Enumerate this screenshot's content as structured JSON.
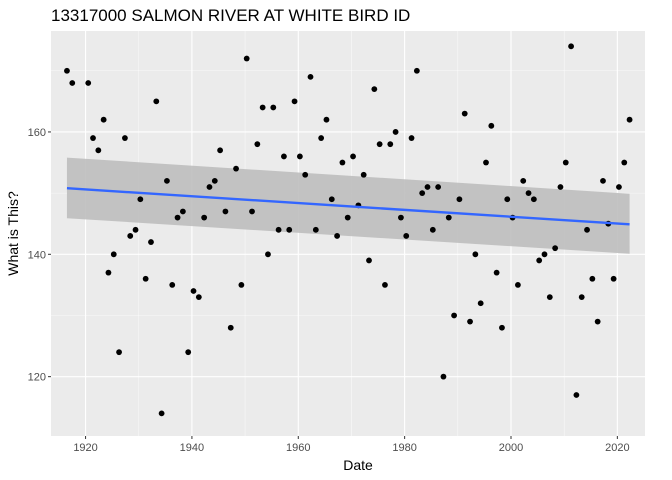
{
  "chart_data": {
    "type": "scatter",
    "title": "13317000 SALMON RIVER AT WHITE BIRD ID",
    "xlabel": "Date",
    "ylabel": "What is This?",
    "xlim": [
      1913.5,
      2025.2
    ],
    "ylim": [
      110.3,
      176.5
    ],
    "x_ticks": [
      1920,
      1940,
      1960,
      1980,
      2000,
      2020
    ],
    "x_tick_labels": [
      "1920",
      "1940",
      "1960",
      "1980",
      "2000",
      "2020"
    ],
    "y_ticks": [
      120,
      140,
      160
    ],
    "y_tick_labels": [
      "120",
      "140",
      "160"
    ],
    "grid": true,
    "colors": {
      "panel": "#ebebeb",
      "grid_major": "#ffffff",
      "points": "#000000",
      "trend_line": "#3366ff",
      "confidence_band": "#bebebe"
    },
    "points": [
      {
        "x": 1916.5,
        "y": 170
      },
      {
        "x": 1917.5,
        "y": 168
      },
      {
        "x": 1920.5,
        "y": 168
      },
      {
        "x": 1921.4,
        "y": 159
      },
      {
        "x": 1922.4,
        "y": 157
      },
      {
        "x": 1923.4,
        "y": 162
      },
      {
        "x": 1924.3,
        "y": 137
      },
      {
        "x": 1925.3,
        "y": 140
      },
      {
        "x": 1926.3,
        "y": 124
      },
      {
        "x": 1927.4,
        "y": 159
      },
      {
        "x": 1928.4,
        "y": 143
      },
      {
        "x": 1929.4,
        "y": 144
      },
      {
        "x": 1930.3,
        "y": 149
      },
      {
        "x": 1931.3,
        "y": 136
      },
      {
        "x": 1932.3,
        "y": 142
      },
      {
        "x": 1933.3,
        "y": 165
      },
      {
        "x": 1934.3,
        "y": 114
      },
      {
        "x": 1935.3,
        "y": 152
      },
      {
        "x": 1936.3,
        "y": 135
      },
      {
        "x": 1937.3,
        "y": 146
      },
      {
        "x": 1938.3,
        "y": 147
      },
      {
        "x": 1939.3,
        "y": 124
      },
      {
        "x": 1940.3,
        "y": 134
      },
      {
        "x": 1941.3,
        "y": 133
      },
      {
        "x": 1942.3,
        "y": 146
      },
      {
        "x": 1943.3,
        "y": 151
      },
      {
        "x": 1944.3,
        "y": 152
      },
      {
        "x": 1945.3,
        "y": 157
      },
      {
        "x": 1946.3,
        "y": 147
      },
      {
        "x": 1947.3,
        "y": 128
      },
      {
        "x": 1948.3,
        "y": 154
      },
      {
        "x": 1949.3,
        "y": 135
      },
      {
        "x": 1950.3,
        "y": 172
      },
      {
        "x": 1951.3,
        "y": 147
      },
      {
        "x": 1952.3,
        "y": 158
      },
      {
        "x": 1953.3,
        "y": 164
      },
      {
        "x": 1954.3,
        "y": 140
      },
      {
        "x": 1955.3,
        "y": 164
      },
      {
        "x": 1956.3,
        "y": 144
      },
      {
        "x": 1957.3,
        "y": 156
      },
      {
        "x": 1958.3,
        "y": 144
      },
      {
        "x": 1959.3,
        "y": 165
      },
      {
        "x": 1960.3,
        "y": 156
      },
      {
        "x": 1961.3,
        "y": 153
      },
      {
        "x": 1962.3,
        "y": 169
      },
      {
        "x": 1963.3,
        "y": 144
      },
      {
        "x": 1964.3,
        "y": 159
      },
      {
        "x": 1965.3,
        "y": 162
      },
      {
        "x": 1966.3,
        "y": 149
      },
      {
        "x": 1967.3,
        "y": 143
      },
      {
        "x": 1968.3,
        "y": 155
      },
      {
        "x": 1969.3,
        "y": 146
      },
      {
        "x": 1970.3,
        "y": 156
      },
      {
        "x": 1971.3,
        "y": 148
      },
      {
        "x": 1972.3,
        "y": 153
      },
      {
        "x": 1973.3,
        "y": 139
      },
      {
        "x": 1974.3,
        "y": 167
      },
      {
        "x": 1975.3,
        "y": 158
      },
      {
        "x": 1976.3,
        "y": 135
      },
      {
        "x": 1977.3,
        "y": 158
      },
      {
        "x": 1978.3,
        "y": 160
      },
      {
        "x": 1979.3,
        "y": 146
      },
      {
        "x": 1980.3,
        "y": 143
      },
      {
        "x": 1981.3,
        "y": 159
      },
      {
        "x": 1982.3,
        "y": 170
      },
      {
        "x": 1983.3,
        "y": 150
      },
      {
        "x": 1984.3,
        "y": 151
      },
      {
        "x": 1985.3,
        "y": 144
      },
      {
        "x": 1986.3,
        "y": 151
      },
      {
        "x": 1987.3,
        "y": 120
      },
      {
        "x": 1988.3,
        "y": 146
      },
      {
        "x": 1989.3,
        "y": 130
      },
      {
        "x": 1990.3,
        "y": 149
      },
      {
        "x": 1991.3,
        "y": 163
      },
      {
        "x": 1992.3,
        "y": 129
      },
      {
        "x": 1993.3,
        "y": 140
      },
      {
        "x": 1994.3,
        "y": 132
      },
      {
        "x": 1995.3,
        "y": 155
      },
      {
        "x": 1996.3,
        "y": 161
      },
      {
        "x": 1997.3,
        "y": 137
      },
      {
        "x": 1998.3,
        "y": 128
      },
      {
        "x": 1999.3,
        "y": 149
      },
      {
        "x": 2000.3,
        "y": 146
      },
      {
        "x": 2001.3,
        "y": 135
      },
      {
        "x": 2002.3,
        "y": 152
      },
      {
        "x": 2003.3,
        "y": 150
      },
      {
        "x": 2004.3,
        "y": 149
      },
      {
        "x": 2005.3,
        "y": 139
      },
      {
        "x": 2006.3,
        "y": 140
      },
      {
        "x": 2007.3,
        "y": 133
      },
      {
        "x": 2008.3,
        "y": 141
      },
      {
        "x": 2009.3,
        "y": 151
      },
      {
        "x": 2010.3,
        "y": 155
      },
      {
        "x": 2011.3,
        "y": 174
      },
      {
        "x": 2012.3,
        "y": 117
      },
      {
        "x": 2013.3,
        "y": 133
      },
      {
        "x": 2014.3,
        "y": 144
      },
      {
        "x": 2015.3,
        "y": 136
      },
      {
        "x": 2016.3,
        "y": 129
      },
      {
        "x": 2017.3,
        "y": 152
      },
      {
        "x": 2018.3,
        "y": 145
      },
      {
        "x": 2019.3,
        "y": 136
      },
      {
        "x": 2020.3,
        "y": 151
      },
      {
        "x": 2021.3,
        "y": 155
      },
      {
        "x": 2022.3,
        "y": 162
      }
    ],
    "trend": {
      "x": [
        1916.5,
        2022.3
      ],
      "y": [
        150.8,
        144.9
      ],
      "band_upper": [
        155.8,
        149.9
      ],
      "band_lower": [
        145.9,
        140.1
      ]
    }
  }
}
